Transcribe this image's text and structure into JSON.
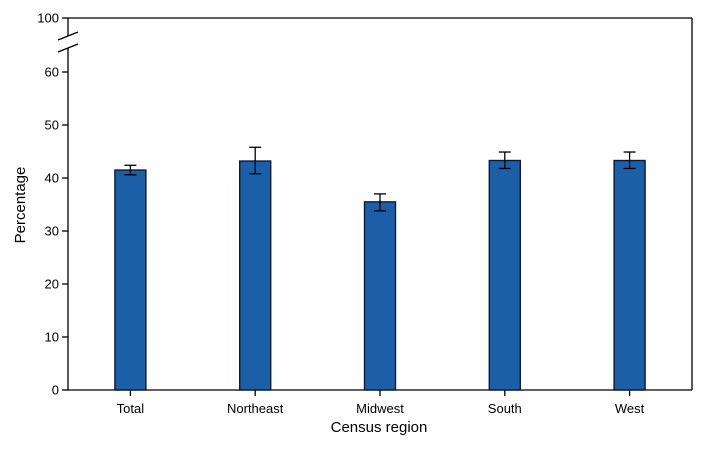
{
  "chart_data": {
    "type": "bar",
    "title": "",
    "xlabel": "Census region",
    "ylabel": "Percentage",
    "categories": [
      "Total",
      "Northeast",
      "Midwest",
      "South",
      "West"
    ],
    "values": [
      41.5,
      43.2,
      35.5,
      43.3,
      43.3
    ],
    "error_low": [
      40.6,
      40.8,
      33.8,
      41.8,
      41.8
    ],
    "error_high": [
      42.4,
      45.8,
      37.0,
      44.9,
      44.9
    ],
    "y_ticks": [
      "0",
      "10",
      "20",
      "30",
      "40",
      "50",
      "60",
      "100"
    ],
    "ylim": [
      0,
      100
    ],
    "axis_break": [
      60,
      100
    ],
    "grid": false,
    "legend": "none",
    "bar_color": "#1a5fa8",
    "bar_edge_color": "#0a1a33"
  }
}
